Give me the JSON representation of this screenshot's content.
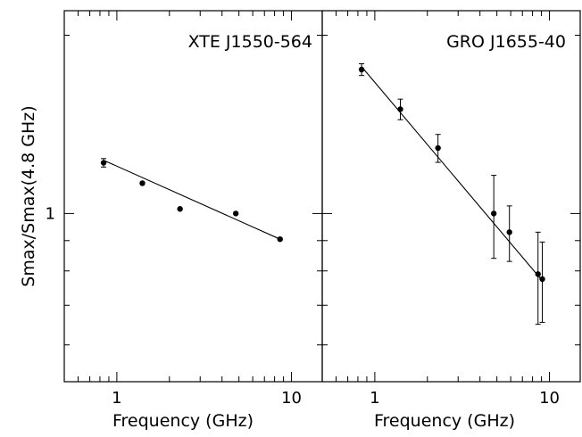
{
  "chart_data": [
    {
      "type": "scatter",
      "title": "XTE J1550-564",
      "xlabel": "Frequency (GHz)",
      "ylabel": "Smax/Smax(4.8 GHz)",
      "xscale": "log",
      "yscale": "log",
      "xlim": [
        0.5,
        15
      ],
      "ylim": [
        0.52,
        2.2
      ],
      "x_ticks": [
        {
          "value": 1,
          "label": "1"
        },
        {
          "value": 10,
          "label": "10"
        }
      ],
      "y_ticks": [
        {
          "value": 1,
          "label": "1"
        }
      ],
      "series": [
        {
          "points": [
            {
              "x": 0.84,
              "y": 1.218,
              "err": 0.02
            },
            {
              "x": 1.4,
              "y": 1.125,
              "err": 0
            },
            {
              "x": 2.3,
              "y": 1.018,
              "err": 0
            },
            {
              "x": 4.8,
              "y": 1.0,
              "err": 0
            },
            {
              "x": 8.6,
              "y": 0.905,
              "err": 0
            }
          ],
          "fit": {
            "x": [
              0.84,
              8.6
            ],
            "y": [
              1.23,
              0.905
            ]
          }
        }
      ]
    },
    {
      "type": "scatter",
      "title": "GRO J1655-40",
      "xlabel": "Frequency (GHz)",
      "ylabel": "",
      "xscale": "log",
      "yscale": "log",
      "xlim": [
        0.5,
        15
      ],
      "ylim": [
        0.52,
        2.2
      ],
      "x_ticks": [
        {
          "value": 1,
          "label": "1"
        },
        {
          "value": 10,
          "label": "10"
        }
      ],
      "y_ticks": [
        {
          "value": 1,
          "label": "1"
        }
      ],
      "series": [
        {
          "points": [
            {
              "x": 0.84,
              "y": 1.75,
              "err": 0.04
            },
            {
              "x": 1.4,
              "y": 1.5,
              "err": 0.06
            },
            {
              "x": 2.3,
              "y": 1.29,
              "err": 0.07
            },
            {
              "x": 4.8,
              "y": 1.0,
              "err": 0.16
            },
            {
              "x": 5.9,
              "y": 0.93,
              "err": 0.1
            },
            {
              "x": 8.6,
              "y": 0.79,
              "err": 0.14
            },
            {
              "x": 9.1,
              "y": 0.775,
              "err": 0.12
            }
          ],
          "fit": {
            "x": [
              0.84,
              9.1
            ],
            "y": [
              1.77,
              0.77
            ]
          }
        }
      ]
    }
  ]
}
